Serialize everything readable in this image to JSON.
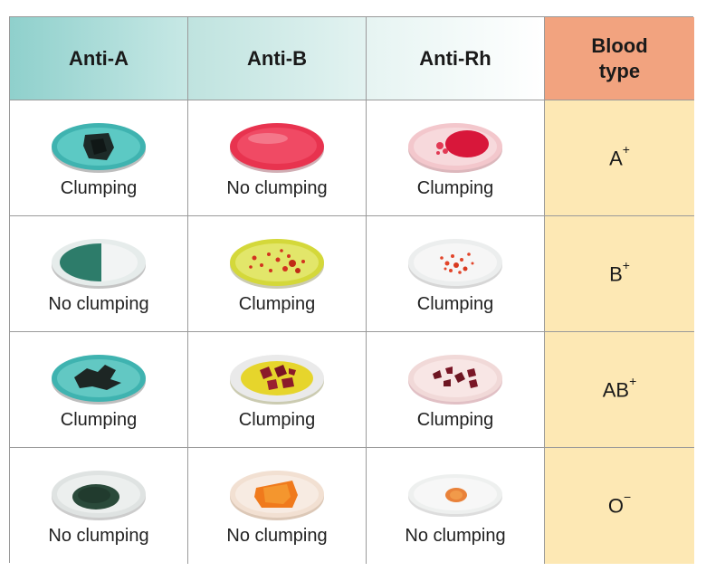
{
  "headers": {
    "anti_a": "Anti-A",
    "anti_b": "Anti-B",
    "anti_rh": "Anti-Rh",
    "blood_type_line1": "Blood",
    "blood_type_line2": "type"
  },
  "rows": [
    {
      "anti_a": "Clumping",
      "anti_b": "No clumping",
      "anti_rh": "Clumping",
      "type_base": "A",
      "type_sign": "+"
    },
    {
      "anti_a": "No clumping",
      "anti_b": "Clumping",
      "anti_rh": "Clumping",
      "type_base": "B",
      "type_sign": "+"
    },
    {
      "anti_a": "Clumping",
      "anti_b": "Clumping",
      "anti_rh": "Clumping",
      "type_base": "AB",
      "type_sign": "+"
    },
    {
      "anti_a": "No clumping",
      "anti_b": "No clumping",
      "anti_rh": "No clumping",
      "type_base": "O",
      "type_sign": "−"
    }
  ],
  "colors": {
    "header_teal": "#8fd0cc",
    "header_blood_type": "#f2a37f",
    "blood_type_bg": "#fde8b4"
  }
}
